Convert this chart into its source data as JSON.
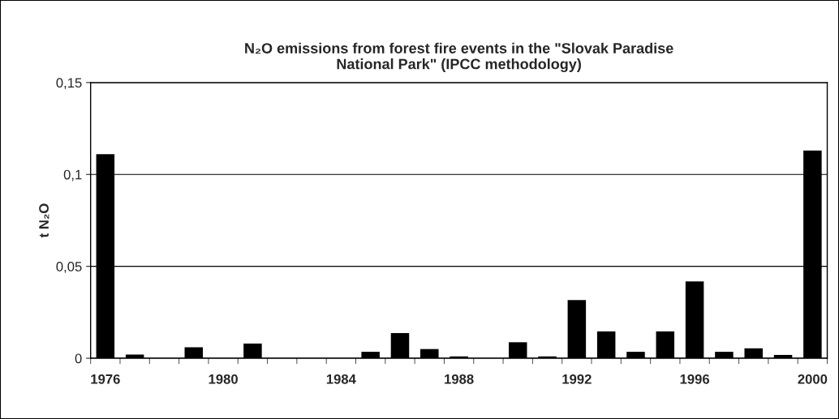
{
  "chart_data": {
    "type": "bar",
    "title": "N₂O emissions from forest fire events in the \"Slovak Paradise\nNational Park\" (IPCC methodology)",
    "ylabel": "t N₂O",
    "categories": [
      "1976",
      null,
      null,
      null,
      "1980",
      null,
      null,
      null,
      "1984",
      null,
      null,
      null,
      "1988",
      null,
      null,
      null,
      "1992",
      null,
      null,
      null,
      "1996",
      null,
      null,
      null,
      "2000"
    ],
    "values": [
      0.111,
      0.002,
      0,
      0.006,
      0,
      0.008,
      0,
      0,
      0,
      0.0035,
      0.0137,
      0.005,
      0.001,
      0,
      0.0087,
      0.001,
      0.0316,
      0.0146,
      0.0035,
      0.0146,
      0.0418,
      0.0035,
      0.0054,
      0.0018,
      0.113
    ],
    "color": "#000000",
    "ylim": [
      0,
      0.15
    ],
    "yticks": [
      {
        "value": 0,
        "label": "0"
      },
      {
        "value": 0.05,
        "label": "0,05"
      },
      {
        "value": 0.1,
        "label": "0,1"
      },
      {
        "value": 0.15,
        "label": "0,15"
      }
    ],
    "grid": "y",
    "legend": false
  }
}
